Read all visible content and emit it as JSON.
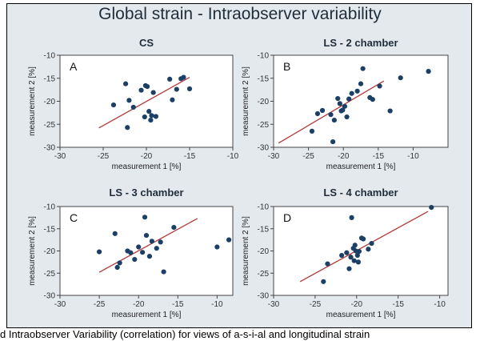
{
  "figure": {
    "title": "Global strain - Intraobserver variability",
    "caption_fragment": "d Intraobserver Variability (correlation) for views of a-s-i-al and longitudinal strain"
  },
  "colors": {
    "point": "#1c3f66",
    "line": "#b23a3a",
    "plot_bg": "#ffffff",
    "figure_bg": "#e4e9ee"
  },
  "chart_data": [
    {
      "type": "scatter",
      "letter": "A",
      "title": "CS",
      "xlabel": "measurement 1 [%]",
      "ylabel": "measurement 2 [%]",
      "xlim": [
        -30,
        -10
      ],
      "ylim": [
        -30,
        -10
      ],
      "xticks": [
        -30,
        -25,
        -20,
        -15,
        -10
      ],
      "yticks": [
        -30,
        -25,
        -20,
        -15,
        -10
      ],
      "x": [
        -22.4,
        -23.8,
        -22.0,
        -22.2,
        -21.5,
        -20.6,
        -20.1,
        -19.9,
        -19.7,
        -19.2,
        -19.4,
        -20.2,
        -19.5,
        -18.9,
        -17.3,
        -17.0,
        -16.5,
        -16.0,
        -15.7,
        -15.0
      ],
      "y": [
        -16.2,
        -20.8,
        -19.8,
        -25.7,
        -21.3,
        -17.6,
        -16.6,
        -16.8,
        -22.2,
        -18.1,
        -23.1,
        -23.4,
        -24.1,
        -23.3,
        -15.2,
        -19.7,
        -17.4,
        -15.1,
        -14.8,
        -17.3
      ],
      "fit_line": {
        "x": [
          -25.5,
          -15.0
        ],
        "y": [
          -25.8,
          -14.8
        ]
      }
    },
    {
      "type": "scatter",
      "letter": "B",
      "title": "LS - 2 chamber",
      "xlabel": "measurement 1 [%]",
      "ylabel": "measurement 2 [%]",
      "xlim": [
        -30,
        -5
      ],
      "ylim": [
        -30,
        -10
      ],
      "xticks": [
        -30,
        -25,
        -20,
        -15,
        -10
      ],
      "yticks": [
        -30,
        -25,
        -20,
        -15,
        -10
      ],
      "x": [
        -24.5,
        -23.7,
        -23.0,
        -21.8,
        -21.5,
        -21.3,
        -20.8,
        -20.5,
        -20.3,
        -20.1,
        -19.8,
        -19.5,
        -19.2,
        -18.8,
        -18.0,
        -17.5,
        -17.2,
        -16.2,
        -15.8,
        -14.8,
        -13.3,
        -11.8,
        -7.8
      ],
      "y": [
        -26.5,
        -22.7,
        -22.0,
        -22.9,
        -28.8,
        -24.1,
        -19.4,
        -20.5,
        -22.1,
        -21.9,
        -21.1,
        -23.4,
        -19.5,
        -18.3,
        -17.8,
        -16.2,
        -12.9,
        -19.2,
        -19.6,
        -16.7,
        -22.1,
        -14.9,
        -13.5
      ],
      "fit_line": {
        "x": [
          -29.3,
          -14.2
        ],
        "y": [
          -29.1,
          -15.6
        ]
      }
    },
    {
      "type": "scatter",
      "letter": "C",
      "title": "LS - 3 chamber",
      "xlabel": "measurement 1 [%]",
      "ylabel": "measurement 2 [%]",
      "xlim": [
        -30,
        -8
      ],
      "ylim": [
        -30,
        -10
      ],
      "xticks": [
        -30,
        -25,
        -20,
        -15,
        -10
      ],
      "yticks": [
        -30,
        -25,
        -20,
        -15,
        -10
      ],
      "x": [
        -25.0,
        -23.0,
        -22.7,
        -22.4,
        -21.4,
        -21.0,
        -20.5,
        -20.0,
        -19.5,
        -19.2,
        -19.0,
        -18.6,
        -18.3,
        -17.7,
        -17.2,
        -16.8,
        -15.5,
        -10.0,
        -8.5
      ],
      "y": [
        -20.2,
        -16.1,
        -23.7,
        -22.7,
        -20.0,
        -20.4,
        -21.9,
        -19.1,
        -20.3,
        -12.4,
        -16.5,
        -21.2,
        -17.8,
        -19.4,
        -18.0,
        -24.7,
        -14.7,
        -19.1,
        -17.5
      ],
      "fit_line": {
        "x": [
          -25.0,
          -12.5
        ],
        "y": [
          -24.8,
          -12.7
        ]
      }
    },
    {
      "type": "scatter",
      "letter": "D",
      "title": "LS - 4 chamber",
      "xlabel": "measurement 1 [%]",
      "ylabel": "measurement 2 [%]",
      "xlim": [
        -30,
        -9
      ],
      "ylim": [
        -30,
        -10
      ],
      "xticks": [
        -30,
        -25,
        -20,
        -15,
        -10
      ],
      "yticks": [
        -30,
        -25,
        -20,
        -15,
        -10
      ],
      "x": [
        -24.0,
        -23.5,
        -21.8,
        -21.2,
        -20.9,
        -20.7,
        -20.6,
        -20.4,
        -20.3,
        -20.2,
        -20.1,
        -19.9,
        -19.8,
        -19.7,
        -19.4,
        -19.2,
        -18.6,
        -18.2,
        -11.0
      ],
      "y": [
        -26.9,
        -22.9,
        -21.0,
        -20.4,
        -24.0,
        -21.4,
        -12.5,
        -19.4,
        -22.2,
        -18.7,
        -20.0,
        -21.0,
        -22.5,
        -20.1,
        -17.1,
        -17.3,
        -19.6,
        -18.3,
        -10.2
      ],
      "fit_line": {
        "x": [
          -26.8,
          -11.4
        ],
        "y": [
          -26.9,
          -11.1
        ]
      }
    }
  ]
}
